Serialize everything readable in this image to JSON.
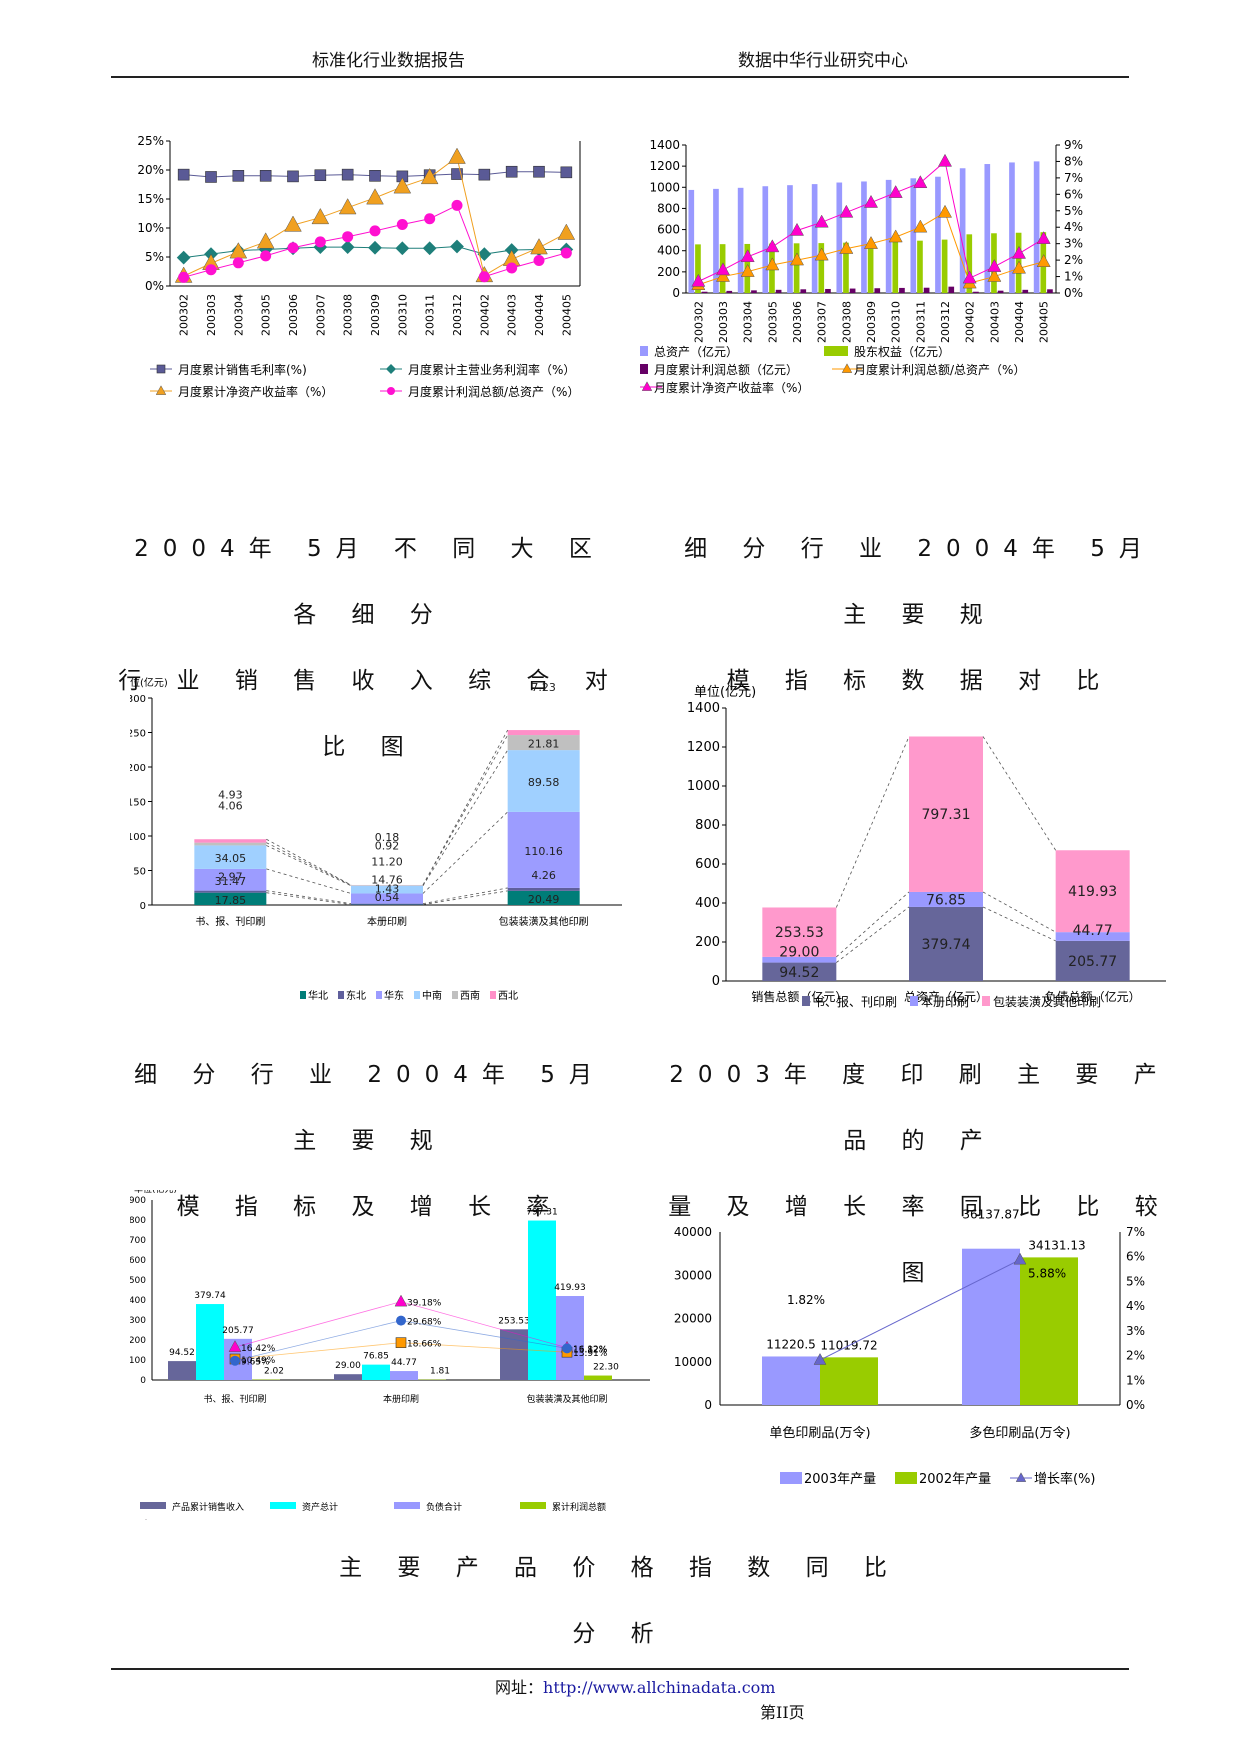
{
  "header": {
    "left": "标准化行业数据报告",
    "right": "数据中华行业研究中心"
  },
  "sections": {
    "s1_line1": "2004年 5月 不 同 大 区 各 细 分",
    "s1_line2": "行 业 销 售 收 入 综 合 对 比 图",
    "s2_line1": "细 分 行 业 2004年 5月 主 要 规",
    "s2_line2": "模 指 标 数 据 对 比",
    "s3_line1": "细 分 行 业 2004年 5月 主 要 规",
    "s3_line2": "模 指 标 及 增 长 率",
    "s4_line1": "2003年 度 印 刷 主 要 产 品 的 产",
    "s4_line2": "量 及 增 长 率 同 比 比 较 图",
    "s5": "主 要 产 品 价 格 指 数 同 比 分 析"
  },
  "footer": {
    "url_label": "网址：",
    "url": "http://www.allchinadata.com",
    "page": "第II页"
  },
  "chart_data": [
    {
      "id": "c1",
      "type": "line",
      "x": [
        "200302",
        "200303",
        "200304",
        "200305",
        "200306",
        "200307",
        "200308",
        "200309",
        "200310",
        "200311",
        "200312",
        "200402",
        "200403",
        "200404",
        "200405"
      ],
      "ylim": [
        0,
        0.25
      ],
      "yticks": [
        "0%",
        "5%",
        "10%",
        "15%",
        "20%",
        "25%"
      ],
      "series": [
        {
          "name": "月度累计销售毛利率(%)",
          "color": "#5a5a96",
          "marker": "square",
          "values": [
            0.192,
            0.188,
            0.19,
            0.19,
            0.189,
            0.191,
            0.192,
            0.19,
            0.189,
            0.191,
            0.193,
            0.192,
            0.197,
            0.197,
            0.196
          ]
        },
        {
          "name": "月度累计主营业务利润率（%）",
          "color": "#1e7f7a",
          "marker": "diamond",
          "values": [
            0.049,
            0.055,
            0.061,
            0.063,
            0.065,
            0.067,
            0.067,
            0.066,
            0.065,
            0.065,
            0.068,
            0.055,
            0.062,
            0.063,
            0.063
          ]
        },
        {
          "name": "月度累计净资产收益率（%）",
          "color": "#f0a020",
          "marker": "triangle",
          "values": [
            0.017,
            0.039,
            0.059,
            0.076,
            0.105,
            0.118,
            0.135,
            0.152,
            0.171,
            0.187,
            0.222,
            0.018,
            0.046,
            0.066,
            0.091
          ]
        },
        {
          "name": "月度累计利润总额/总资产（%）",
          "color": "#ff10d0",
          "marker": "circle",
          "values": [
            0.015,
            0.028,
            0.04,
            0.052,
            0.066,
            0.076,
            0.085,
            0.095,
            0.106,
            0.116,
            0.139,
            0.016,
            0.031,
            0.044,
            0.057
          ]
        }
      ]
    },
    {
      "id": "c2",
      "type": "bar",
      "x": [
        "200302",
        "200303",
        "200304",
        "200305",
        "200306",
        "200307",
        "200308",
        "200309",
        "200310",
        "200311",
        "200312",
        "200402",
        "200403",
        "200404",
        "200405"
      ],
      "ylim": [
        0,
        1400
      ],
      "y2lim": [
        0,
        0.09
      ],
      "yticks": [
        "0",
        "200",
        "400",
        "600",
        "800",
        "1000",
        "1200",
        "1400"
      ],
      "y2ticks": [
        "0%",
        "1%",
        "2%",
        "3%",
        "4%",
        "5%",
        "6%",
        "7%",
        "8%",
        "9%"
      ],
      "series": [
        {
          "name": "总资产（亿元）",
          "color": "#9999ff",
          "values": [
            975,
            985,
            995,
            1010,
            1020,
            1030,
            1045,
            1055,
            1070,
            1085,
            1100,
            1180,
            1220,
            1235,
            1245
          ]
        },
        {
          "name": "股东权益（亿元）",
          "color": "#99cc00",
          "values": [
            460,
            462,
            464,
            468,
            470,
            472,
            476,
            478,
            485,
            495,
            505,
            555,
            565,
            570,
            575
          ]
        },
        {
          "name": "月度累计利润总额（亿元）",
          "color": "#660066",
          "values": [
            12,
            20,
            25,
            30,
            35,
            38,
            42,
            45,
            48,
            50,
            60,
            12,
            22,
            30,
            35
          ]
        },
        {
          "name": "月度累计利润总额/总资产（%）",
          "color": "#ff9900",
          "axis": "right",
          "marker": "triangle",
          "values": [
            0.005,
            0.01,
            0.013,
            0.017,
            0.02,
            0.023,
            0.027,
            0.03,
            0.034,
            0.04,
            0.049,
            0.006,
            0.01,
            0.015,
            0.019
          ]
        },
        {
          "name": "月度累计净资产收益率（%）",
          "color": "#ff00cc",
          "axis": "right",
          "marker": "triangle",
          "values": [
            0.007,
            0.014,
            0.022,
            0.028,
            0.038,
            0.043,
            0.049,
            0.055,
            0.061,
            0.067,
            0.08,
            0.009,
            0.016,
            0.024,
            0.033
          ]
        }
      ]
    },
    {
      "id": "c3",
      "type": "bar",
      "stacked": true,
      "unit": "单位(亿元)",
      "categories": [
        "书、报、刊印刷",
        "本册印刷",
        "包装装潢及其他印刷"
      ],
      "ylim": [
        0,
        300
      ],
      "yticks": [
        "0",
        "50",
        "100",
        "150",
        "200",
        "250",
        "300"
      ],
      "series": [
        {
          "name": "华北",
          "color": "#007d78",
          "values": [
            17.85,
            0.54,
            20.49
          ]
        },
        {
          "name": "东北",
          "color": "#5f5f9c",
          "values": [
            2.97,
            1.43,
            4.26
          ]
        },
        {
          "name": "华东",
          "color": "#9c9cff",
          "values": [
            31.47,
            14.76,
            110.16
          ]
        },
        {
          "name": "中南",
          "color": "#a0d0ff",
          "values": [
            34.05,
            11.2,
            89.58
          ]
        },
        {
          "name": "西南",
          "color": "#c0c0c0",
          "values": [
            4.06,
            0.92,
            21.81
          ]
        },
        {
          "name": "西北",
          "color": "#ff8fc8",
          "values": [
            4.93,
            0.18,
            7.23
          ]
        }
      ],
      "labels": [
        [
          "17.85",
          "2.97",
          "31.47",
          "34.05",
          "4.06",
          "4.93"
        ],
        [
          "0.54",
          "1.43",
          "14.76",
          "11.20",
          "0.92",
          "0.18"
        ],
        [
          "20.49",
          "4.26",
          "110.16",
          "89.58",
          "21.81",
          "7.23"
        ]
      ]
    },
    {
      "id": "c4",
      "type": "bar",
      "stacked": true,
      "unit": "单位(亿元)",
      "categories": [
        "销售总额（亿元）",
        "总资产（亿元）",
        "负债总额（亿元）"
      ],
      "ylim": [
        0,
        1400
      ],
      "yticks": [
        "0",
        "200",
        "400",
        "600",
        "800",
        "1000",
        "1200",
        "1400"
      ],
      "series": [
        {
          "name": "书、报、刊印刷",
          "color": "#66669a",
          "values": [
            94.52,
            379.74,
            205.77
          ]
        },
        {
          "name": "本册印刷",
          "color": "#9999ff",
          "values": [
            29.0,
            76.85,
            44.77
          ]
        },
        {
          "name": "包装装潢及其他印刷",
          "color": "#ff99cc",
          "values": [
            253.53,
            797.31,
            419.93
          ]
        }
      ],
      "labels": [
        [
          "94.52",
          "29.00",
          "253.53"
        ],
        [
          "379.74",
          "76.85",
          "797.31"
        ],
        [
          "205.77",
          "44.77",
          "419.93"
        ]
      ]
    },
    {
      "id": "c5",
      "type": "bar",
      "unit": "单位(亿元)",
      "categories": [
        "书、报、刊印刷",
        "本册印刷",
        "包装装潢及其他印刷"
      ],
      "ylim": [
        0,
        900
      ],
      "y2lim": [
        0,
        0.9
      ],
      "yticks": [
        "0",
        "100",
        "200",
        "300",
        "400",
        "500",
        "600",
        "700",
        "800",
        "900"
      ],
      "series": [
        {
          "name": "产品累计销售收入",
          "color": "#66669a",
          "values": [
            94.52,
            29.0,
            253.53
          ],
          "labels": [
            "94.52",
            "29.00",
            "253.53"
          ]
        },
        {
          "name": "资产总计",
          "color": "#00ffff",
          "values": [
            379.74,
            76.85,
            797.31
          ],
          "labels": [
            "379.74",
            "76.85",
            "797.31"
          ]
        },
        {
          "name": "负债合计",
          "color": "#9999ff",
          "values": [
            205.77,
            44.77,
            419.93
          ],
          "labels": [
            "205.77",
            "44.77",
            "419.93"
          ]
        },
        {
          "name": "累计利润总额",
          "color": "#99cc00",
          "values": [
            2.02,
            1.81,
            22.3
          ],
          "labels": [
            "2.02",
            "1.81",
            "22.30"
          ]
        },
        {
          "name": "同比产品累计销售收入增长率",
          "color": "#ff00cc",
          "axis": "right",
          "marker": "triangle",
          "values": [
            0.1642,
            0.3918,
            0.1612
          ],
          "labels": [
            "16.42%",
            "39.18%",
            "16.12%"
          ]
        },
        {
          "name": "同比资产总计增长率",
          "color": "#ff9900",
          "axis": "right",
          "marker": "square",
          "values": [
            0.1049,
            0.1866,
            0.1391
          ],
          "labels": [
            "10.49%",
            "18.66%",
            "13.91%"
          ]
        },
        {
          "name": "同比负债合计增长率",
          "color": "#3366cc",
          "axis": "right",
          "marker": "circle",
          "values": [
            0.0965,
            0.2968,
            0.1582
          ],
          "labels": [
            "9.65%",
            "29.68%",
            "15.82%"
          ]
        }
      ]
    },
    {
      "id": "c6",
      "type": "bar",
      "categories": [
        "单色印刷品(万令)",
        "多色印刷品(万令)"
      ],
      "ylim": [
        0,
        40000
      ],
      "y2lim": [
        0,
        0.07
      ],
      "yticks": [
        "0",
        "10000",
        "20000",
        "30000",
        "40000"
      ],
      "y2ticks": [
        "0%",
        "1%",
        "2%",
        "3%",
        "4%",
        "5%",
        "6%",
        "7%"
      ],
      "series": [
        {
          "name": "2003年产量",
          "color": "#9999ff",
          "values": [
            11220.5,
            36137.87
          ],
          "labels": [
            "11220.5",
            "36137.87"
          ]
        },
        {
          "name": "2002年产量",
          "color": "#99cc00",
          "values": [
            11019.72,
            34131.13
          ],
          "labels": [
            "11019.72",
            "34131.13"
          ]
        },
        {
          "name": "增长率(%)",
          "color": "#6666cc",
          "axis": "right",
          "marker": "triangle",
          "values": [
            0.0182,
            0.0588
          ],
          "labels": [
            "1.82%",
            "5.88%"
          ]
        }
      ]
    }
  ]
}
